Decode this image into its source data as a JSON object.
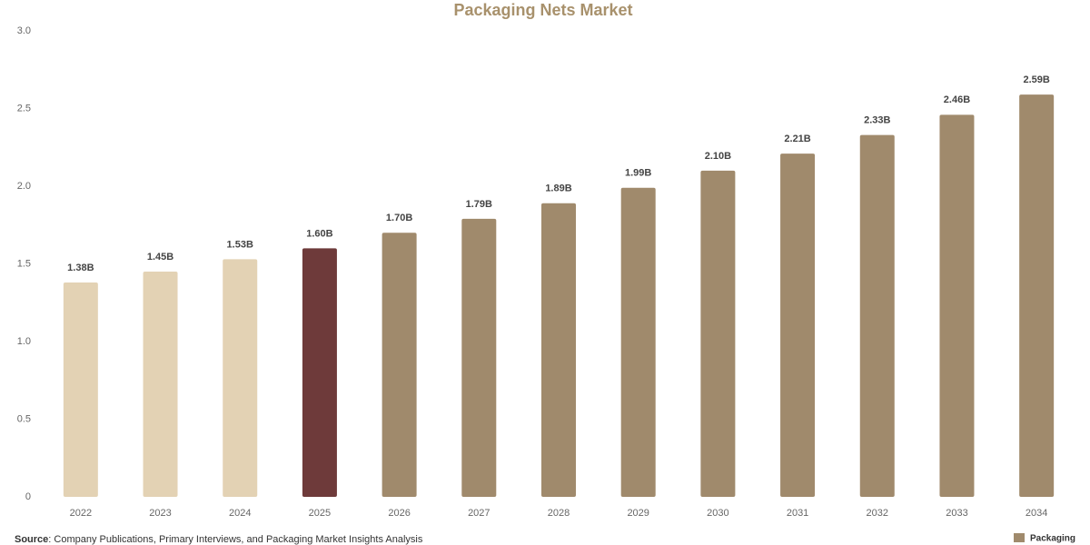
{
  "chart_data": {
    "type": "bar",
    "title": "Packaging Nets Market",
    "categories": [
      "2022",
      "2023",
      "2024",
      "2025",
      "2026",
      "2027",
      "2028",
      "2029",
      "2030",
      "2031",
      "2032",
      "2033",
      "2034"
    ],
    "values": [
      1.38,
      1.45,
      1.53,
      1.6,
      1.7,
      1.79,
      1.89,
      1.99,
      2.1,
      2.21,
      2.33,
      2.46,
      2.59
    ],
    "value_labels": [
      "1.38B",
      "1.45B",
      "1.53B",
      "1.60B",
      "1.70B",
      "1.79B",
      "1.89B",
      "1.99B",
      "2.10B",
      "2.21B",
      "2.33B",
      "2.46B",
      "2.59B"
    ],
    "colors": [
      "#e3d2b4",
      "#e3d2b4",
      "#e3d2b4",
      "#6e3a3a",
      "#a08a6c",
      "#a08a6c",
      "#a08a6c",
      "#a08a6c",
      "#a08a6c",
      "#a08a6c",
      "#a08a6c",
      "#a08a6c",
      "#a08a6c"
    ],
    "ylim": [
      0,
      3
    ],
    "yticks": [
      0,
      0.5,
      {
        "value": 1,
        "label": "1.0"
      },
      1.5,
      {
        "value": 2,
        "label": "2.0"
      },
      2.5,
      {
        "value": 3,
        "label": "3.0"
      }
    ],
    "grid": false,
    "source_label": "Source",
    "source_text": ": Company Publications, Primary Interviews, and Packaging Market Insights Analysis",
    "logo_text": "Packaging"
  }
}
